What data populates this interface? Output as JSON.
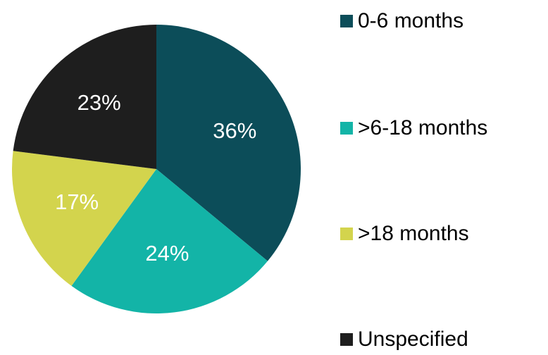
{
  "chart_data": {
    "type": "pie",
    "categories": [
      "0-6 months",
      ">6-18 months",
      ">18 months",
      "Unspecified"
    ],
    "values": [
      36,
      24,
      17,
      23
    ],
    "value_labels": [
      "36%",
      "24%",
      "17%",
      "23%"
    ],
    "colors": [
      "#0c4d59",
      "#13b4a7",
      "#d3d44d",
      "#1e1e1e"
    ],
    "legend": "right"
  }
}
